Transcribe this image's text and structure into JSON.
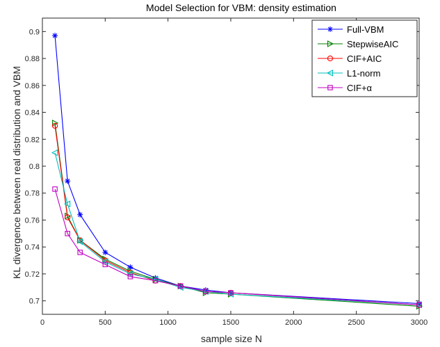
{
  "chart_data": {
    "type": "line",
    "title": "Model Selection for VBM: density estimation",
    "xlabel": "sample size N",
    "ylabel": "KL divergence between real distribution and VBM",
    "xlim": [
      0,
      3000
    ],
    "ylim": [
      0.69,
      0.91
    ],
    "xticks": [
      0,
      500,
      1000,
      1500,
      2000,
      2500,
      3000
    ],
    "xtick_labels": [
      "0",
      "500",
      "1000",
      "1500",
      "2000",
      "2500",
      "3000"
    ],
    "yticks": [
      0.7,
      0.72,
      0.74,
      0.76,
      0.78,
      0.8,
      0.82,
      0.84,
      0.86,
      0.88,
      0.9
    ],
    "ytick_labels": [
      "0.7",
      "0.72",
      "0.74",
      "0.76",
      "0.78",
      "0.8",
      "0.82",
      "0.84",
      "0.86",
      "0.88",
      "0.9"
    ],
    "grid": false,
    "legend_position": "top-right",
    "x": [
      100,
      200,
      300,
      500,
      700,
      900,
      1100,
      1300,
      1500,
      3000
    ],
    "series": [
      {
        "name": "Full-VBM",
        "color": "#0000ff",
        "marker": "asterisk",
        "values": [
          0.897,
          0.789,
          0.764,
          0.736,
          0.725,
          0.717,
          0.711,
          0.708,
          0.706,
          0.698
        ]
      },
      {
        "name": "StepwiseAIC",
        "color": "#008000",
        "marker": "triangle-right",
        "values": [
          0.832,
          0.763,
          0.745,
          0.731,
          0.722,
          0.716,
          0.711,
          0.706,
          0.705,
          0.696
        ]
      },
      {
        "name": "CIF+AIC",
        "color": "#ff0000",
        "marker": "circle",
        "values": [
          0.83,
          0.762,
          0.745,
          0.73,
          0.721,
          0.715,
          0.711,
          0.707,
          0.706,
          0.697
        ]
      },
      {
        "name": "L1-norm",
        "color": "#00bfbf",
        "marker": "triangle-left",
        "values": [
          0.81,
          0.772,
          0.744,
          0.729,
          0.72,
          0.716,
          0.71,
          0.707,
          0.705,
          0.697
        ]
      },
      {
        "name": "CIF+α",
        "color": "#bf00bf",
        "marker": "square",
        "values": [
          0.783,
          0.75,
          0.736,
          0.727,
          0.718,
          0.715,
          0.711,
          0.707,
          0.706,
          0.697
        ]
      }
    ]
  }
}
